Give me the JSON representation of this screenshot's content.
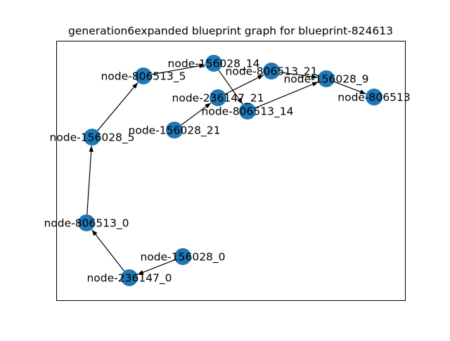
{
  "title": "generation6expanded blueprint graph for blueprint-824613",
  "colors": {
    "node": "#1f77b4",
    "edge": "#000000",
    "background": "#ffffff",
    "frame": "#000000"
  },
  "nodes": [
    {
      "id": "node-806513_5",
      "label": "node-806513_5"
    },
    {
      "id": "node-156028_14",
      "label": "node-156028_14"
    },
    {
      "id": "node-806513_21",
      "label": "node-806513_21"
    },
    {
      "id": "node-156028_9",
      "label": "node-156028_9"
    },
    {
      "id": "node-806513",
      "label": "node-806513"
    },
    {
      "id": "node-236147_21",
      "label": "node-236147_21"
    },
    {
      "id": "node-806513_14",
      "label": "node-806513_14"
    },
    {
      "id": "node-156028_21",
      "label": "node-156028_21"
    },
    {
      "id": "node-156028_5",
      "label": "node-156028_5"
    },
    {
      "id": "node-806513_0",
      "label": "node-806513_0"
    },
    {
      "id": "node-156028_0",
      "label": "node-156028_0"
    },
    {
      "id": "node-236147_0",
      "label": "node-236147_0"
    }
  ],
  "edges": [
    {
      "from": "node-156028_0",
      "to": "node-236147_0"
    },
    {
      "from": "node-236147_0",
      "to": "node-806513_0"
    },
    {
      "from": "node-806513_0",
      "to": "node-156028_5"
    },
    {
      "from": "node-156028_5",
      "to": "node-806513_5"
    },
    {
      "from": "node-806513_5",
      "to": "node-156028_14"
    },
    {
      "from": "node-156028_14",
      "to": "node-806513_14"
    },
    {
      "from": "node-806513_14",
      "to": "node-156028_9"
    },
    {
      "from": "node-156028_9",
      "to": "node-806513"
    },
    {
      "from": "node-156028_21",
      "to": "node-236147_21"
    },
    {
      "from": "node-236147_21",
      "to": "node-806513_21"
    },
    {
      "from": "node-806513_21",
      "to": "node-156028_9"
    }
  ]
}
